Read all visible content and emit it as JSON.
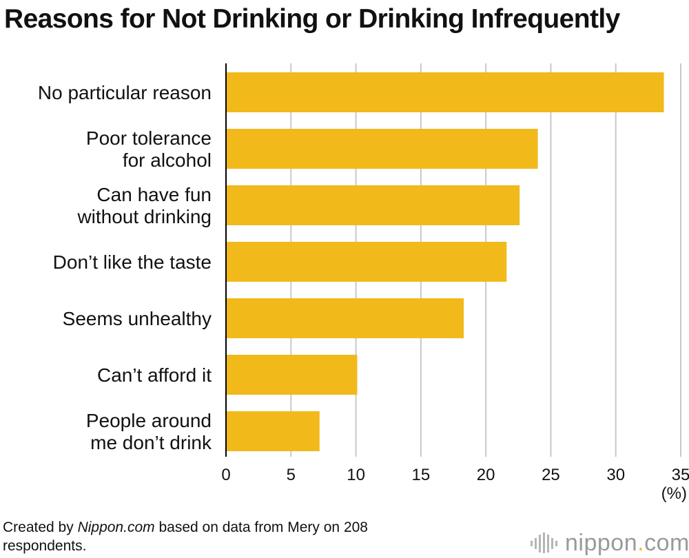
{
  "title": "Reasons for Not Drinking or Drinking Infrequently",
  "chart_data": {
    "type": "bar",
    "orientation": "horizontal",
    "title": "Reasons for Not Drinking or Drinking Infrequently",
    "categories": [
      [
        "No particular reason"
      ],
      [
        "Poor tolerance",
        "for alcohol"
      ],
      [
        "Can have fun",
        "without drinking"
      ],
      [
        "Don’t like the taste"
      ],
      [
        "Seems unhealthy"
      ],
      [
        "Can’t afford it"
      ],
      [
        "People around",
        "me don’t drink"
      ]
    ],
    "values": [
      33.7,
      24.0,
      22.6,
      21.6,
      18.3,
      10.1,
      7.2
    ],
    "xlim": [
      0,
      35
    ],
    "xticks": [
      0,
      5,
      10,
      15,
      20,
      25,
      30,
      35
    ],
    "unit_label": "(%)",
    "grid": true,
    "bar_color": "#f1b91a",
    "grid_color": "#c8c8c8"
  },
  "source": {
    "prefix": "Created by ",
    "site": "Nippon.com",
    "suffix": " based on data from Mery on 208 respondents."
  },
  "logo": {
    "name": "nippon",
    "dot": ".",
    "suffix": "com"
  }
}
